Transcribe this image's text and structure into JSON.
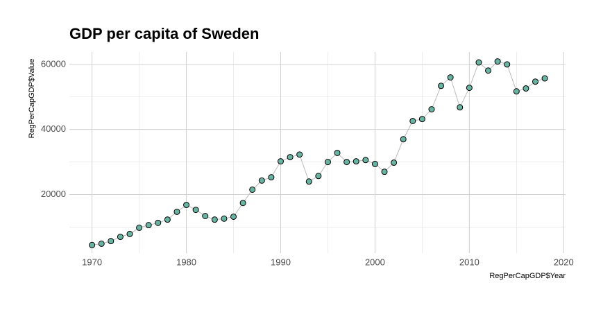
{
  "chart_data": {
    "type": "scatter",
    "title": "GDP per capita of Sweden",
    "x_label": "RegPerCapGDP$Year",
    "y_label": "RegPerCapGDP$Value",
    "x": [
      1970,
      1971,
      1972,
      1973,
      1974,
      1975,
      1976,
      1977,
      1978,
      1979,
      1980,
      1981,
      1982,
      1983,
      1984,
      1985,
      1986,
      1987,
      1988,
      1989,
      1990,
      1991,
      1992,
      1993,
      1994,
      1995,
      1996,
      1997,
      1998,
      1999,
      2000,
      2001,
      2002,
      2003,
      2004,
      2005,
      2006,
      2007,
      2008,
      2009,
      2010,
      2011,
      2012,
      2013,
      2014,
      2015,
      2016,
      2017,
      2018
    ],
    "values": [
      4500,
      4900,
      5700,
      7000,
      7900,
      9800,
      10600,
      11300,
      12300,
      14700,
      16800,
      15300,
      13400,
      12300,
      12600,
      13200,
      17400,
      21500,
      24300,
      25300,
      30200,
      31500,
      32300,
      24000,
      25700,
      30000,
      32800,
      30000,
      30200,
      30600,
      29400,
      27000,
      29800,
      37000,
      42600,
      43200,
      46200,
      53400,
      56000,
      46800,
      52800,
      60600,
      58100,
      60900,
      60000,
      51700,
      52600,
      54700,
      55700
    ],
    "color": "#69b3a2",
    "line_color": "#bbbbbb",
    "xlim": [
      1967.6,
      2020.2
    ],
    "xticks": [
      1970,
      1980,
      1990,
      2000,
      2010,
      2020
    ],
    "xminor": [
      1975,
      1985,
      1995,
      2005,
      2015
    ],
    "ylim": [
      2000,
      63800
    ],
    "yticks": [
      20000,
      40000,
      60000
    ],
    "yminor": [
      10000,
      30000,
      50000
    ],
    "grid": true
  }
}
